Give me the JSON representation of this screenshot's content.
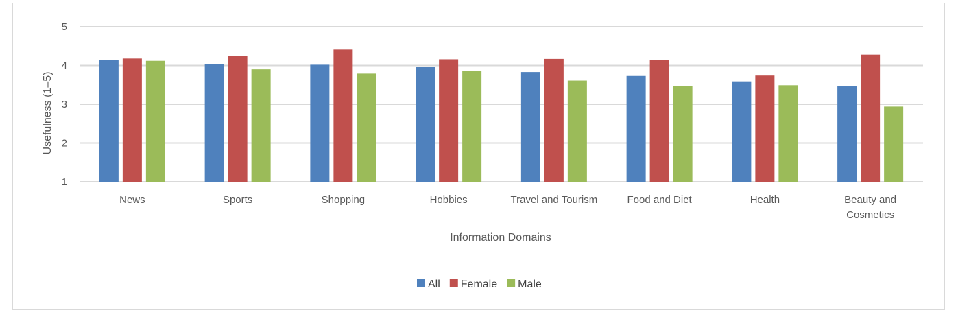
{
  "chart_data": {
    "type": "bar",
    "xlabel": "Information Domains",
    "ylabel": "Usefulness (1–5)",
    "ylim": [
      1,
      5
    ],
    "yticks": [
      1,
      2,
      3,
      4,
      5
    ],
    "grid": true,
    "legend_placement": "bottom",
    "categories": [
      [
        "News"
      ],
      [
        "Sports"
      ],
      [
        "Shopping"
      ],
      [
        "Hobbies"
      ],
      [
        "Travel and Tourism"
      ],
      [
        "Food and Diet"
      ],
      [
        "Health"
      ],
      [
        "Beauty and",
        "Cosmetics"
      ]
    ],
    "series": [
      {
        "name": "All",
        "color": "#4f81bd",
        "values": [
          4.14,
          4.04,
          4.02,
          3.97,
          3.83,
          3.73,
          3.59,
          3.46
        ]
      },
      {
        "name": "Female",
        "color": "#c0504d",
        "values": [
          4.18,
          4.25,
          4.41,
          4.16,
          4.17,
          4.14,
          3.74,
          4.28
        ]
      },
      {
        "name": "Male",
        "color": "#9bbb59",
        "values": [
          4.12,
          3.9,
          3.79,
          3.85,
          3.61,
          3.47,
          3.49,
          2.94
        ]
      }
    ]
  }
}
